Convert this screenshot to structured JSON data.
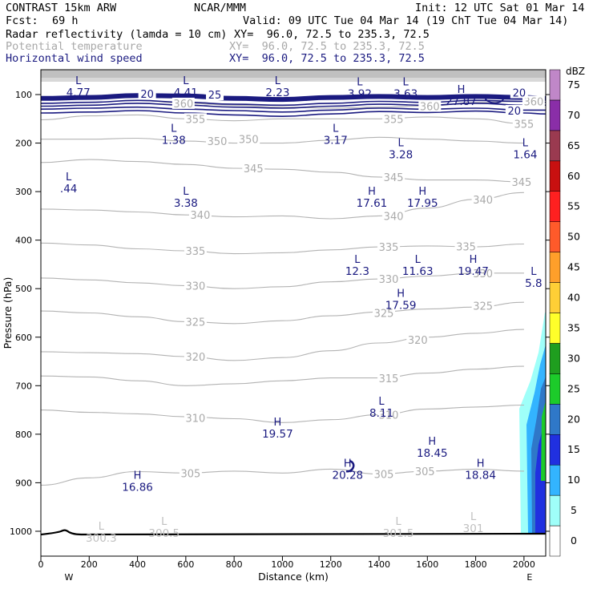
{
  "header": {
    "title": "CONTRAST 15km ARW",
    "org": "NCAR/MMM",
    "init": "Init: 12 UTC Sat 01 Mar 14",
    "fcst_label": "Fcst:",
    "fcst_value": "69 h",
    "valid": "Valid: 09 UTC Tue 04 Mar 14 (19 ChT Tue 04 Mar 14)",
    "layers": [
      {
        "name": "Radar reflectivity (lamda = 10 cm)",
        "xy": "XY=  96.0, 72.5 to 235.3, 72.5",
        "color": "#000000"
      },
      {
        "name": "Potential temperature",
        "xy": "XY=  96.0, 72.5 to 235.3, 72.5",
        "color": "#a8a8a8"
      },
      {
        "name": "Horizontal wind speed",
        "xy": "XY=  96.0, 72.5 to 235.3, 72.5",
        "color": "#1a1a80"
      }
    ]
  },
  "chart_data": {
    "type": "cross-section",
    "xlabel": "Distance (km)",
    "ylabel": "Pressure (hPa)",
    "xlim": [
      0,
      2090
    ],
    "ylim": [
      1050,
      70
    ],
    "x_ticks": [
      0,
      200,
      400,
      600,
      800,
      1000,
      1200,
      1400,
      1600,
      1800,
      2000
    ],
    "y_ticks": [
      100,
      200,
      300,
      400,
      500,
      600,
      700,
      800,
      900,
      1000
    ],
    "x_end_labels": {
      "left": "W",
      "right": "E"
    },
    "colorbar": {
      "unit": "dBZ",
      "levels": [
        "0",
        "5",
        "10",
        "15",
        "20",
        "25",
        "30",
        "35",
        "40",
        "45",
        "50",
        "55",
        "60",
        "65",
        "70",
        "75"
      ],
      "colors": [
        "#ffffff",
        "#9ffff9",
        "#33b4ff",
        "#2030e0",
        "#2f78c8",
        "#1ccb2a",
        "#1f9e1f",
        "#ffff2a",
        "#ffcf36",
        "#ff9f2a",
        "#ff5a2a",
        "#ff2020",
        "#c81010",
        "#9a3a50",
        "#8a2ea8",
        "#c087c8"
      ]
    },
    "theta_contours": [
      {
        "label": "305",
        "points": [
          [
            0,
            905
          ],
          [
            200,
            890
          ],
          [
            400,
            877
          ],
          [
            600,
            880
          ],
          [
            800,
            876
          ],
          [
            1000,
            880
          ],
          [
            1200,
            872
          ],
          [
            1400,
            882
          ],
          [
            1600,
            876
          ],
          [
            1800,
            872
          ],
          [
            2000,
            876
          ]
        ]
      },
      {
        "label": "310",
        "points": [
          [
            0,
            750
          ],
          [
            200,
            755
          ],
          [
            400,
            758
          ],
          [
            600,
            764
          ],
          [
            800,
            768
          ],
          [
            1000,
            776
          ],
          [
            1200,
            770
          ],
          [
            1400,
            760
          ],
          [
            1600,
            748
          ],
          [
            1800,
            744
          ],
          [
            2000,
            740
          ]
        ]
      },
      {
        "label": "315",
        "points": [
          [
            0,
            680
          ],
          [
            200,
            682
          ],
          [
            400,
            690
          ],
          [
            600,
            700
          ],
          [
            800,
            696
          ],
          [
            1000,
            690
          ],
          [
            1200,
            684
          ],
          [
            1400,
            684
          ],
          [
            1600,
            674
          ],
          [
            1800,
            666
          ],
          [
            2000,
            660
          ]
        ]
      },
      {
        "label": "320",
        "points": [
          [
            0,
            630
          ],
          [
            200,
            632
          ],
          [
            400,
            634
          ],
          [
            600,
            640
          ],
          [
            800,
            648
          ],
          [
            1000,
            642
          ],
          [
            1200,
            628
          ],
          [
            1400,
            612
          ],
          [
            1600,
            600
          ],
          [
            1800,
            592
          ],
          [
            2000,
            584
          ]
        ]
      },
      {
        "label": "325",
        "points": [
          [
            0,
            546
          ],
          [
            200,
            550
          ],
          [
            400,
            558
          ],
          [
            600,
            568
          ],
          [
            800,
            572
          ],
          [
            1000,
            566
          ],
          [
            1200,
            556
          ],
          [
            1400,
            548
          ],
          [
            1600,
            542
          ],
          [
            1800,
            538
          ],
          [
            2000,
            528
          ]
        ]
      },
      {
        "label": "330",
        "points": [
          [
            0,
            478
          ],
          [
            200,
            482
          ],
          [
            400,
            488
          ],
          [
            600,
            494
          ],
          [
            800,
            500
          ],
          [
            1000,
            496
          ],
          [
            1200,
            486
          ],
          [
            1400,
            480
          ],
          [
            1600,
            474
          ],
          [
            1800,
            468
          ],
          [
            2000,
            468
          ]
        ]
      },
      {
        "label": "335",
        "points": [
          [
            0,
            406
          ],
          [
            200,
            410
          ],
          [
            400,
            418
          ],
          [
            600,
            422
          ],
          [
            800,
            428
          ],
          [
            1000,
            426
          ],
          [
            1200,
            420
          ],
          [
            1400,
            414
          ],
          [
            1600,
            412
          ],
          [
            1800,
            414
          ],
          [
            2000,
            408
          ]
        ]
      },
      {
        "label": "340",
        "points": [
          [
            0,
            336
          ],
          [
            200,
            338
          ],
          [
            400,
            342
          ],
          [
            600,
            348
          ],
          [
            800,
            352
          ],
          [
            1000,
            350
          ],
          [
            1200,
            356
          ],
          [
            1400,
            350
          ],
          [
            1600,
            334
          ],
          [
            1800,
            316
          ],
          [
            2000,
            302
          ]
        ]
      },
      {
        "label": "345",
        "points": [
          [
            0,
            240
          ],
          [
            200,
            234
          ],
          [
            400,
            238
          ],
          [
            600,
            244
          ],
          [
            800,
            252
          ],
          [
            1000,
            254
          ],
          [
            1200,
            260
          ],
          [
            1400,
            270
          ],
          [
            1600,
            276
          ],
          [
            1800,
            276
          ],
          [
            2000,
            280
          ]
        ]
      },
      {
        "label": "350",
        "points": [
          [
            0,
            192
          ],
          [
            200,
            192
          ],
          [
            400,
            190
          ],
          [
            600,
            196
          ],
          [
            800,
            200
          ],
          [
            1000,
            200
          ],
          [
            1200,
            194
          ],
          [
            1400,
            188
          ],
          [
            1600,
            192
          ],
          [
            1800,
            196
          ],
          [
            2000,
            200
          ]
        ]
      },
      {
        "label": "355",
        "points": [
          [
            0,
            152
          ],
          [
            200,
            144
          ],
          [
            400,
            142
          ],
          [
            600,
            150
          ],
          [
            800,
            154
          ],
          [
            1000,
            150
          ],
          [
            1200,
            150
          ],
          [
            1400,
            150
          ],
          [
            1600,
            146
          ],
          [
            1800,
            150
          ],
          [
            2000,
            160
          ]
        ]
      },
      {
        "label": "360",
        "points": [
          [
            0,
            118
          ],
          [
            200,
            116
          ],
          [
            400,
            112
          ],
          [
            600,
            118
          ],
          [
            800,
            122
          ],
          [
            1000,
            126
          ],
          [
            1200,
            128
          ],
          [
            1400,
            126
          ],
          [
            1600,
            124
          ],
          [
            1800,
            116
          ],
          [
            2000,
            114
          ]
        ]
      }
    ],
    "theta_labels": [
      {
        "text": "305",
        "x": 620,
        "p": 880
      },
      {
        "text": "305",
        "x": 1420,
        "p": 882
      },
      {
        "text": "305",
        "x": 1590,
        "p": 876
      },
      {
        "text": "310",
        "x": 640,
        "p": 766
      },
      {
        "text": "310",
        "x": 1440,
        "p": 760
      },
      {
        "text": "315",
        "x": 1440,
        "p": 685
      },
      {
        "text": "320",
        "x": 640,
        "p": 640
      },
      {
        "text": "320",
        "x": 1560,
        "p": 605
      },
      {
        "text": "325",
        "x": 640,
        "p": 568
      },
      {
        "text": "325",
        "x": 1420,
        "p": 550
      },
      {
        "text": "325",
        "x": 1830,
        "p": 535
      },
      {
        "text": "330",
        "x": 640,
        "p": 494
      },
      {
        "text": "330",
        "x": 1440,
        "p": 480
      },
      {
        "text": "330",
        "x": 1830,
        "p": 468
      },
      {
        "text": "335",
        "x": 640,
        "p": 422
      },
      {
        "text": "335",
        "x": 1440,
        "p": 414
      },
      {
        "text": "335",
        "x": 1760,
        "p": 413
      },
      {
        "text": "340",
        "x": 660,
        "p": 348
      },
      {
        "text": "340",
        "x": 1460,
        "p": 350
      },
      {
        "text": "340",
        "x": 1830,
        "p": 316
      },
      {
        "text": "345",
        "x": 880,
        "p": 252
      },
      {
        "text": "345",
        "x": 1460,
        "p": 270
      },
      {
        "text": "345",
        "x": 1990,
        "p": 280
      },
      {
        "text": "350",
        "x": 730,
        "p": 196
      },
      {
        "text": "350",
        "x": 860,
        "p": 192
      },
      {
        "text": "355",
        "x": 640,
        "p": 150
      },
      {
        "text": "355",
        "x": 1460,
        "p": 150
      },
      {
        "text": "355",
        "x": 2000,
        "p": 160
      },
      {
        "text": "360",
        "x": 590,
        "p": 118
      },
      {
        "text": "360",
        "x": 1610,
        "p": 124
      },
      {
        "text": "360",
        "x": 2040,
        "p": 114
      }
    ],
    "extrema": [
      {
        "type": "L",
        "value": "4.77",
        "x": 155,
        "p": 92
      },
      {
        "type": "L",
        "value": "4.41",
        "x": 600,
        "p": 92
      },
      {
        "type": "L",
        "value": "2.23",
        "x": 980,
        "p": 92
      },
      {
        "type": "L",
        "value": "3.92",
        "x": 1320,
        "p": 94
      },
      {
        "type": "L",
        "value": "3.63",
        "x": 1510,
        "p": 94
      },
      {
        "type": "H",
        "value": "27.87",
        "x": 1740,
        "p": 110
      },
      {
        "type": "L",
        "value": "1.38",
        "x": 550,
        "p": 190
      },
      {
        "type": "L",
        "value": "3.17",
        "x": 1220,
        "p": 190
      },
      {
        "type": "L",
        "value": "3.28",
        "x": 1490,
        "p": 220
      },
      {
        "type": "L",
        "value": "1.64",
        "x": 2005,
        "p": 220
      },
      {
        "type": "L",
        "value": ".44",
        "x": 115,
        "p": 290
      },
      {
        "type": "L",
        "value": "3.38",
        "x": 600,
        "p": 320
      },
      {
        "type": "H",
        "value": "17.61",
        "x": 1370,
        "p": 320
      },
      {
        "type": "H",
        "value": "17.95",
        "x": 1580,
        "p": 320
      },
      {
        "type": "L",
        "value": "12.3",
        "x": 1310,
        "p": 460
      },
      {
        "type": "L",
        "value": "11.63",
        "x": 1560,
        "p": 460
      },
      {
        "type": "H",
        "value": "19.47",
        "x": 1790,
        "p": 460
      },
      {
        "type": "L",
        "value": "5.8",
        "x": 2040,
        "p": 485
      },
      {
        "type": "H",
        "value": "17.59",
        "x": 1490,
        "p": 530
      },
      {
        "type": "L",
        "value": "8.11",
        "x": 1410,
        "p": 752
      },
      {
        "type": "H",
        "value": "19.57",
        "x": 980,
        "p": 795
      },
      {
        "type": "H",
        "value": "18.45",
        "x": 1620,
        "p": 835
      },
      {
        "type": "H",
        "value": "20.28",
        "x": 1270,
        "p": 880
      },
      {
        "type": "H",
        "value": "18.84",
        "x": 1820,
        "p": 880
      },
      {
        "type": "H",
        "value": "16.86",
        "x": 400,
        "p": 905
      }
    ],
    "theta_minima": [
      {
        "type": "L",
        "value": "300.3",
        "x": 250,
        "p": 1010
      },
      {
        "type": "L",
        "value": "300.5",
        "x": 510,
        "p": 1000
      },
      {
        "type": "L",
        "value": "301.5",
        "x": 1480,
        "p": 1000
      },
      {
        "type": "L",
        "value": "301",
        "x": 1790,
        "p": 990
      }
    ],
    "wind_contour_labels": [
      {
        "text": "20",
        "x": 440,
        "p": 98
      },
      {
        "text": "25",
        "x": 720,
        "p": 100
      },
      {
        "text": "20",
        "x": 1980,
        "p": 96
      },
      {
        "text": "20",
        "x": 1960,
        "p": 133
      }
    ]
  }
}
